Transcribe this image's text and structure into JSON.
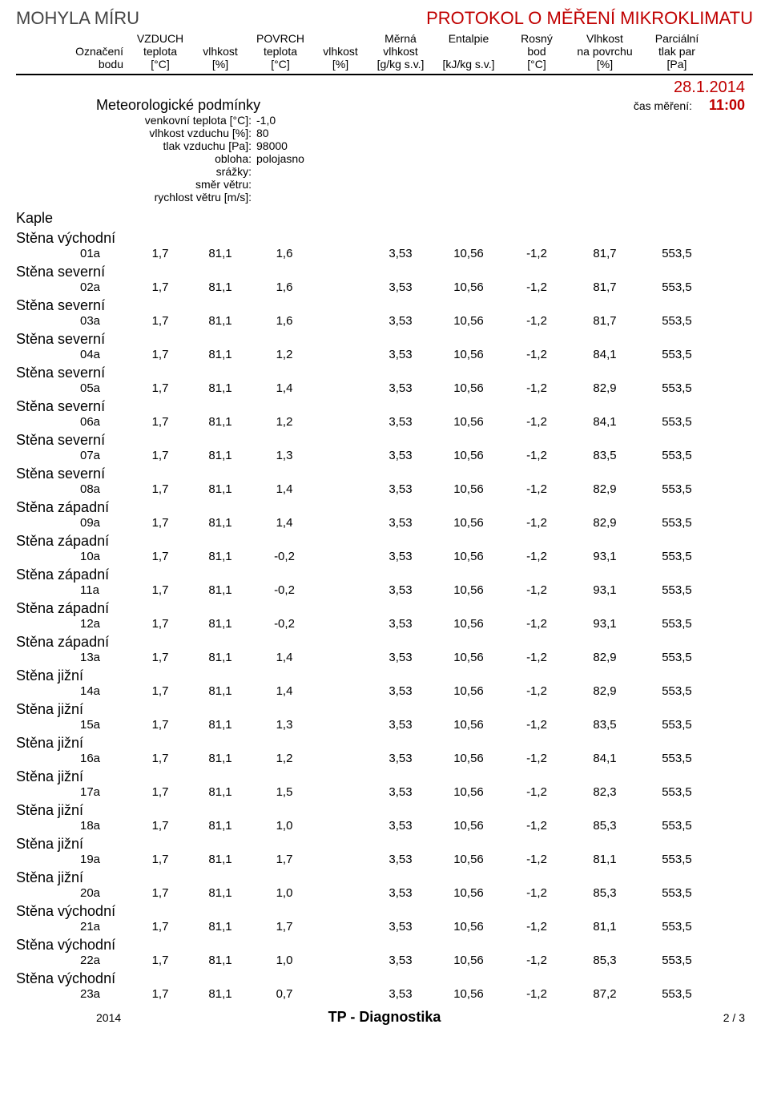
{
  "header": {
    "site_name": "MOHYLA MÍRU",
    "protocol_title": "PROTOKOL O MĚŘENÍ MIKROKLIMATU"
  },
  "columns": {
    "r1": [
      "",
      "VZDUCH",
      "",
      "POVRCH",
      "",
      "Měrná",
      "Entalpie",
      "Rosný",
      "Vlhkost",
      "Parciální"
    ],
    "r2": [
      "Označení",
      "teplota",
      "vlhkost",
      "teplota",
      "vlhkost",
      "vlhkost",
      "",
      "bod",
      "na povrchu",
      "tlak par"
    ],
    "r3": [
      "bodu",
      "[°C]",
      "[%]",
      "[°C]",
      "[%]",
      "[g/kg s.v.]",
      "[kJ/kg s.v.]",
      "[°C]",
      "[%]",
      "[Pa]"
    ]
  },
  "date": "28.1.2014",
  "meas_time_label": "čas měření:",
  "meas_time_value": "11:00",
  "meteo": {
    "title": "Meteorologické podmínky",
    "rows": [
      {
        "label": "venkovní teplota [°C]:",
        "value": "-1,0"
      },
      {
        "label": "vlhkost vzduchu [%]:",
        "value": "80"
      },
      {
        "label": "tlak vzduchu [Pa]:",
        "value": "98000"
      },
      {
        "label": "obloha:",
        "value": "polojasno"
      },
      {
        "label": "srážky:",
        "value": ""
      },
      {
        "label": "směr větru:",
        "value": ""
      },
      {
        "label": "rychlost větru [m/s]:",
        "value": ""
      }
    ]
  },
  "section_name": "Kaple",
  "rows": [
    {
      "wall": "Stěna východní",
      "id": "01a",
      "t_air": "1,7",
      "rh_air": "81,1",
      "t_surf": "1,6",
      "rh_surf": "",
      "spec_h": "3,53",
      "enth": "10,56",
      "dew": "-1,2",
      "rh_s": "81,7",
      "pp": "553,5"
    },
    {
      "wall": "Stěna severní",
      "id": "02a",
      "t_air": "1,7",
      "rh_air": "81,1",
      "t_surf": "1,6",
      "rh_surf": "",
      "spec_h": "3,53",
      "enth": "10,56",
      "dew": "-1,2",
      "rh_s": "81,7",
      "pp": "553,5"
    },
    {
      "wall": "Stěna severní",
      "id": "03a",
      "t_air": "1,7",
      "rh_air": "81,1",
      "t_surf": "1,6",
      "rh_surf": "",
      "spec_h": "3,53",
      "enth": "10,56",
      "dew": "-1,2",
      "rh_s": "81,7",
      "pp": "553,5"
    },
    {
      "wall": "Stěna severní",
      "id": "04a",
      "t_air": "1,7",
      "rh_air": "81,1",
      "t_surf": "1,2",
      "rh_surf": "",
      "spec_h": "3,53",
      "enth": "10,56",
      "dew": "-1,2",
      "rh_s": "84,1",
      "pp": "553,5"
    },
    {
      "wall": "Stěna severní",
      "id": "05a",
      "t_air": "1,7",
      "rh_air": "81,1",
      "t_surf": "1,4",
      "rh_surf": "",
      "spec_h": "3,53",
      "enth": "10,56",
      "dew": "-1,2",
      "rh_s": "82,9",
      "pp": "553,5"
    },
    {
      "wall": "Stěna severní",
      "id": "06a",
      "t_air": "1,7",
      "rh_air": "81,1",
      "t_surf": "1,2",
      "rh_surf": "",
      "spec_h": "3,53",
      "enth": "10,56",
      "dew": "-1,2",
      "rh_s": "84,1",
      "pp": "553,5"
    },
    {
      "wall": "Stěna severní",
      "id": "07a",
      "t_air": "1,7",
      "rh_air": "81,1",
      "t_surf": "1,3",
      "rh_surf": "",
      "spec_h": "3,53",
      "enth": "10,56",
      "dew": "-1,2",
      "rh_s": "83,5",
      "pp": "553,5"
    },
    {
      "wall": "Stěna severní",
      "id": "08a",
      "t_air": "1,7",
      "rh_air": "81,1",
      "t_surf": "1,4",
      "rh_surf": "",
      "spec_h": "3,53",
      "enth": "10,56",
      "dew": "-1,2",
      "rh_s": "82,9",
      "pp": "553,5"
    },
    {
      "wall": "Stěna západní",
      "id": "09a",
      "t_air": "1,7",
      "rh_air": "81,1",
      "t_surf": "1,4",
      "rh_surf": "",
      "spec_h": "3,53",
      "enth": "10,56",
      "dew": "-1,2",
      "rh_s": "82,9",
      "pp": "553,5"
    },
    {
      "wall": "Stěna západní",
      "id": "10a",
      "t_air": "1,7",
      "rh_air": "81,1",
      "t_surf": "-0,2",
      "rh_surf": "",
      "spec_h": "3,53",
      "enth": "10,56",
      "dew": "-1,2",
      "rh_s": "93,1",
      "pp": "553,5"
    },
    {
      "wall": "Stěna západní",
      "id": "11a",
      "t_air": "1,7",
      "rh_air": "81,1",
      "t_surf": "-0,2",
      "rh_surf": "",
      "spec_h": "3,53",
      "enth": "10,56",
      "dew": "-1,2",
      "rh_s": "93,1",
      "pp": "553,5"
    },
    {
      "wall": "Stěna západní",
      "id": "12a",
      "t_air": "1,7",
      "rh_air": "81,1",
      "t_surf": "-0,2",
      "rh_surf": "",
      "spec_h": "3,53",
      "enth": "10,56",
      "dew": "-1,2",
      "rh_s": "93,1",
      "pp": "553,5"
    },
    {
      "wall": "Stěna západní",
      "id": "13a",
      "t_air": "1,7",
      "rh_air": "81,1",
      "t_surf": "1,4",
      "rh_surf": "",
      "spec_h": "3,53",
      "enth": "10,56",
      "dew": "-1,2",
      "rh_s": "82,9",
      "pp": "553,5"
    },
    {
      "wall": "Stěna jižní",
      "id": "14a",
      "t_air": "1,7",
      "rh_air": "81,1",
      "t_surf": "1,4",
      "rh_surf": "",
      "spec_h": "3,53",
      "enth": "10,56",
      "dew": "-1,2",
      "rh_s": "82,9",
      "pp": "553,5"
    },
    {
      "wall": "Stěna jižní",
      "id": "15a",
      "t_air": "1,7",
      "rh_air": "81,1",
      "t_surf": "1,3",
      "rh_surf": "",
      "spec_h": "3,53",
      "enth": "10,56",
      "dew": "-1,2",
      "rh_s": "83,5",
      "pp": "553,5"
    },
    {
      "wall": "Stěna jižní",
      "id": "16a",
      "t_air": "1,7",
      "rh_air": "81,1",
      "t_surf": "1,2",
      "rh_surf": "",
      "spec_h": "3,53",
      "enth": "10,56",
      "dew": "-1,2",
      "rh_s": "84,1",
      "pp": "553,5"
    },
    {
      "wall": "Stěna jižní",
      "id": "17a",
      "t_air": "1,7",
      "rh_air": "81,1",
      "t_surf": "1,5",
      "rh_surf": "",
      "spec_h": "3,53",
      "enth": "10,56",
      "dew": "-1,2",
      "rh_s": "82,3",
      "pp": "553,5"
    },
    {
      "wall": "Stěna jižní",
      "id": "18a",
      "t_air": "1,7",
      "rh_air": "81,1",
      "t_surf": "1,0",
      "rh_surf": "",
      "spec_h": "3,53",
      "enth": "10,56",
      "dew": "-1,2",
      "rh_s": "85,3",
      "pp": "553,5"
    },
    {
      "wall": "Stěna jižní",
      "id": "19a",
      "t_air": "1,7",
      "rh_air": "81,1",
      "t_surf": "1,7",
      "rh_surf": "",
      "spec_h": "3,53",
      "enth": "10,56",
      "dew": "-1,2",
      "rh_s": "81,1",
      "pp": "553,5"
    },
    {
      "wall": "Stěna jižní",
      "id": "20a",
      "t_air": "1,7",
      "rh_air": "81,1",
      "t_surf": "1,0",
      "rh_surf": "",
      "spec_h": "3,53",
      "enth": "10,56",
      "dew": "-1,2",
      "rh_s": "85,3",
      "pp": "553,5"
    },
    {
      "wall": "Stěna východní",
      "id": "21a",
      "t_air": "1,7",
      "rh_air": "81,1",
      "t_surf": "1,7",
      "rh_surf": "",
      "spec_h": "3,53",
      "enth": "10,56",
      "dew": "-1,2",
      "rh_s": "81,1",
      "pp": "553,5"
    },
    {
      "wall": "Stěna východní",
      "id": "22a",
      "t_air": "1,7",
      "rh_air": "81,1",
      "t_surf": "1,0",
      "rh_surf": "",
      "spec_h": "3,53",
      "enth": "10,56",
      "dew": "-1,2",
      "rh_s": "85,3",
      "pp": "553,5"
    },
    {
      "wall": "Stěna východní",
      "id": "23a",
      "t_air": "1,7",
      "rh_air": "81,1",
      "t_surf": "0,7",
      "rh_surf": "",
      "spec_h": "3,53",
      "enth": "10,56",
      "dew": "-1,2",
      "rh_s": "87,2",
      "pp": "553,5"
    }
  ],
  "footer": {
    "year": "2014",
    "center": "TP - Diagnostika",
    "page": "2 / 3"
  },
  "colors": {
    "red": "#c00000",
    "text": "#000000",
    "site_name": "#444444"
  }
}
